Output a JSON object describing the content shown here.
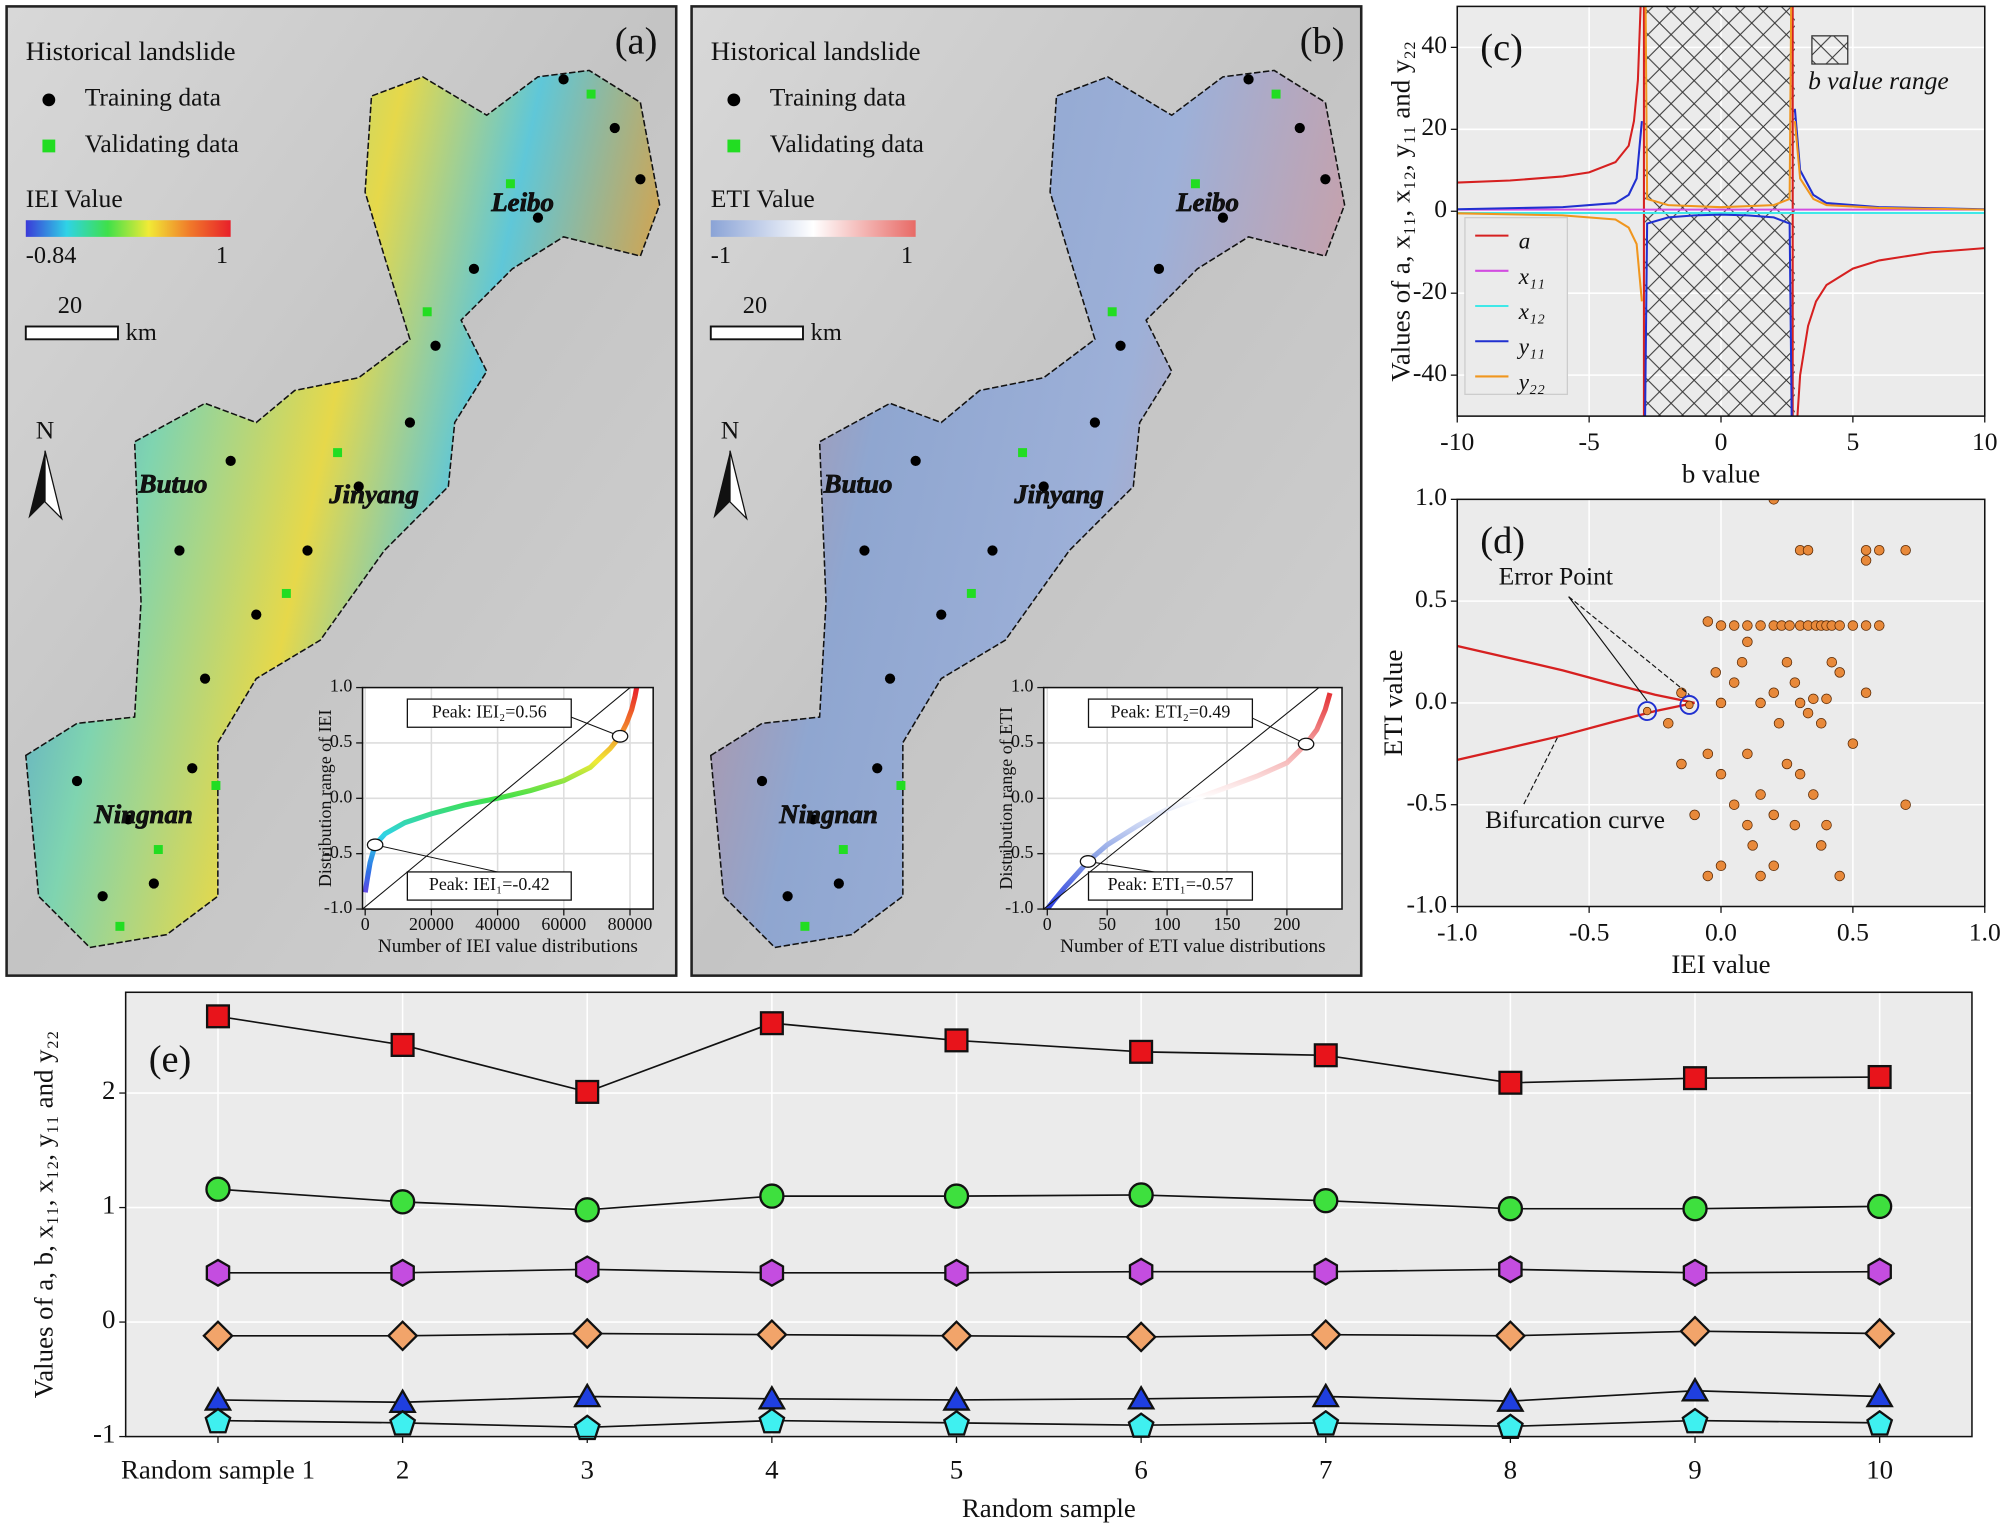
{
  "maps": [
    {
      "label": "(a)",
      "legend_title": "Historical landslide",
      "legend": [
        {
          "name": "Training data",
          "color": "#000000"
        },
        {
          "name": "Validating data",
          "color": "#22dd22"
        }
      ],
      "colorbar": {
        "title": "IEI Value",
        "min": -0.84,
        "max": 1,
        "colors": [
          "#3a3ad8",
          "#2fd3e6",
          "#3fe04a",
          "#f1ea36",
          "#f07a2a",
          "#e8202a"
        ]
      },
      "scale": {
        "length": 20,
        "unit": "km"
      },
      "north": "N",
      "places": [
        "Leibo",
        "Butuo",
        "Jinyang",
        "Ningnan"
      ]
    },
    {
      "label": "(b)",
      "legend_title": "Historical landslide",
      "legend": [
        {
          "name": "Training data",
          "color": "#000000"
        },
        {
          "name": "Validating data",
          "color": "#22dd22"
        }
      ],
      "colorbar": {
        "title": "ETI Value",
        "min": -1,
        "max": 1,
        "colors": [
          "#8aa3d6",
          "#ffffff",
          "#e86a66"
        ]
      },
      "scale": {
        "length": 20,
        "unit": "km"
      },
      "north": "N",
      "places": [
        "Leibo",
        "Butuo",
        "Jinyang",
        "Ningnan"
      ]
    }
  ],
  "chart_data": [
    {
      "type": "line",
      "xlabel": "Number of IEI value distributions",
      "ylabel": "Distribution range of IEI",
      "xlim": [
        -800,
        87000
      ],
      "xticks": [
        0,
        20000,
        40000,
        60000,
        80000
      ],
      "ylim": [
        -1,
        1
      ],
      "yticks": [
        {
          "value": -1,
          "label": "-1.0"
        },
        -0.5,
        {
          "value": 0,
          "label": "0.0"
        },
        0.5,
        {
          "value": 1,
          "label": "1.0"
        }
      ],
      "grid": true,
      "background": "#ffffff",
      "series": [
        {
          "colormap": [
            "#8a2be2",
            "#2f6fe6",
            "#2fd3e6",
            "#3fe04a",
            "#f1ea36",
            "#f07a2a",
            "#e8202a"
          ],
          "x": [
            0,
            500,
            1500,
            3000,
            6000,
            12000,
            20000,
            30000,
            40000,
            50000,
            60000,
            68000,
            74000,
            77000,
            79000,
            80500,
            81500,
            82000
          ],
          "values": [
            -0.85,
            -0.75,
            -0.58,
            -0.42,
            -0.32,
            -0.22,
            -0.14,
            -0.06,
            0.0,
            0.07,
            0.16,
            0.28,
            0.45,
            0.56,
            0.68,
            0.8,
            0.92,
            1.0
          ]
        }
      ],
      "peaks": [
        {
          "label": "Peak: IEI₂=0.56",
          "x": 77000,
          "y": 0.56
        },
        {
          "label": "Peak: IEI₁=-0.42",
          "x": 3000,
          "y": -0.42
        }
      ]
    },
    {
      "type": "line",
      "xlabel": "Number of ETI value distributions",
      "ylabel": "Distribution range of ETI",
      "xlim": [
        -3,
        246
      ],
      "xticks": [
        0,
        50,
        100,
        150,
        200
      ],
      "ylim": [
        -1,
        1
      ],
      "yticks": [
        {
          "value": -1,
          "label": "-1.0"
        },
        -0.5,
        {
          "value": 0,
          "label": "0.0"
        },
        0.5,
        {
          "value": 1,
          "label": "1.0"
        }
      ],
      "grid": true,
      "background": "#ffffff",
      "series": [
        {
          "colormap": [
            "#2a3ee0",
            "#8fa6e6",
            "#ffffff",
            "#f29a9a",
            "#e3262a"
          ],
          "x": [
            0,
            5,
            15,
            25,
            34,
            50,
            75,
            100,
            125,
            150,
            175,
            200,
            216,
            225,
            232,
            236
          ],
          "values": [
            -1.0,
            -0.93,
            -0.8,
            -0.68,
            -0.57,
            -0.42,
            -0.25,
            -0.1,
            0.0,
            0.1,
            0.2,
            0.32,
            0.49,
            0.62,
            0.8,
            0.95
          ]
        }
      ],
      "peaks": [
        {
          "label": "Peak: ETI₂=0.49",
          "x": 216,
          "y": 0.49
        },
        {
          "label": "Peak: ETI₁=-0.57",
          "x": 34,
          "y": -0.57
        }
      ]
    },
    {
      "type": "line",
      "label": "(c)",
      "xlabel": "b value",
      "ylabel": "Values of a, x₁₁, x₁₂, y₁₁ and y₂₂",
      "xlim": [
        -10,
        10
      ],
      "xticks": [
        -10,
        -5,
        0,
        5,
        10
      ],
      "ylim": [
        -50,
        50
      ],
      "yticks": [
        -40,
        -20,
        0,
        20,
        40
      ],
      "grid": true,
      "background": "#ebebeb",
      "shaded_range": {
        "label": "b value range",
        "x": [
          -2.9,
          2.8
        ]
      },
      "series": [
        {
          "name": "a",
          "color": "#d62020",
          "x": [
            -10,
            -8,
            -6,
            -5,
            -4,
            -3.5,
            -3.3,
            -3.15,
            -3.05,
            null,
            -2.92,
            -2.92,
            null,
            2.72,
            2.72,
            null,
            2.9,
            3.0,
            3.3,
            3.6,
            4,
            5,
            6,
            8,
            10
          ],
          "values": [
            7,
            7.5,
            8.5,
            9.5,
            12,
            16,
            22,
            32,
            50,
            null,
            50,
            -50,
            null,
            50,
            -50,
            null,
            -50,
            -40,
            -28,
            -22,
            -18,
            -14,
            -12,
            -10,
            -9
          ]
        },
        {
          "name": "x₁₁",
          "color": "#d24de0",
          "x": [
            -10,
            10
          ],
          "values": [
            0.4,
            0.4
          ]
        },
        {
          "name": "x₁₂",
          "color": "#3fe8e8",
          "x": [
            -10,
            10
          ],
          "values": [
            -0.4,
            -0.4
          ]
        },
        {
          "name": "y₁₁",
          "color": "#2030d0",
          "x": [
            -10,
            -6,
            -4,
            -3.5,
            -3.2,
            -3.0,
            null,
            -2.88,
            -2.8,
            -2,
            -1,
            0,
            1,
            2,
            2.6,
            2.68,
            null,
            2.8,
            3,
            3.5,
            4,
            6,
            10
          ],
          "values": [
            0.5,
            1,
            2,
            4,
            8,
            22,
            null,
            -50,
            -3,
            -1.5,
            -1,
            -0.8,
            -1,
            -1.5,
            -3,
            -50,
            null,
            25,
            10,
            4,
            2,
            1,
            0.5
          ]
        },
        {
          "name": "y₂₂",
          "color": "#f0961e",
          "x": [
            -10,
            -6,
            -4,
            -3.5,
            -3.2,
            -3.0,
            null,
            -2.86,
            -2.8,
            -2,
            0,
            2,
            2.6,
            2.66,
            null,
            2.8,
            3,
            3.5,
            4,
            6,
            10
          ],
          "values": [
            -0.5,
            -1,
            -2,
            -4,
            -8,
            -22,
            null,
            50,
            3,
            1.5,
            1,
            1.5,
            3,
            50,
            null,
            22,
            8,
            3,
            1.5,
            0.8,
            0.4
          ]
        }
      ]
    },
    {
      "type": "scatter",
      "label": "(d)",
      "xlabel": "IEI value",
      "ylabel": "ETI value",
      "xlim": [
        -1,
        1
      ],
      "xticks": [
        {
          "value": -1,
          "label": "-1.0"
        },
        -0.5,
        {
          "value": 0,
          "label": "0.0"
        },
        0.5,
        {
          "value": 1,
          "label": "1.0"
        }
      ],
      "ylim": [
        -1,
        1
      ],
      "yticks": [
        {
          "value": -1,
          "label": "-1.0"
        },
        -0.5,
        {
          "value": 0,
          "label": "0.0"
        },
        0.5,
        {
          "value": 1,
          "label": "1.0"
        }
      ],
      "grid": true,
      "background": "#ebebeb",
      "annotations": [
        "Error Point",
        "Bifurcation curve"
      ],
      "error_points": {
        "x": [
          -0.28,
          -0.12
        ],
        "values": [
          -0.04,
          -0.01
        ]
      },
      "curve": {
        "color": "#d62020",
        "x": [
          -1,
          -0.8,
          -0.6,
          -0.4,
          -0.25,
          -0.1,
          null,
          -1,
          -0.8,
          -0.6,
          -0.4,
          -0.25,
          -0.1
        ],
        "values": [
          0.28,
          0.22,
          0.16,
          0.09,
          0.04,
          0,
          null,
          -0.28,
          -0.22,
          -0.16,
          -0.09,
          -0.04,
          0
        ]
      },
      "series": [
        {
          "color": "#e8893a",
          "x": [
            0.0,
            0.05,
            0.1,
            0.15,
            0.2,
            0.23,
            0.26,
            0.3,
            0.33,
            0.36,
            0.38,
            0.4,
            0.42,
            0.45,
            0.5,
            0.55,
            0.3,
            0.33,
            0.55,
            0.6,
            -0.05,
            -0.02,
            0.0,
            0.05,
            0.1,
            0.1,
            0.15,
            0.2,
            0.22,
            0.25,
            0.28,
            0.3,
            0.33,
            0.35,
            0.38,
            0.4,
            0.42,
            0.45,
            0.0,
            0.05,
            0.1,
            0.15,
            0.2,
            0.25,
            0.28,
            0.3,
            0.35,
            0.4,
            0.45,
            -0.15,
            -0.1,
            -0.05,
            0.0,
            0.15,
            0.2,
            0.55,
            0.7,
            0.7,
            0.5,
            0.55,
            0.6,
            0.2,
            -0.2,
            -0.15,
            -0.05,
            0.12,
            0.38,
            0.08
          ],
          "values": [
            0.38,
            0.38,
            0.38,
            0.38,
            0.38,
            0.38,
            0.38,
            0.38,
            0.38,
            0.38,
            0.38,
            0.38,
            0.38,
            0.38,
            0.38,
            0.38,
            0.75,
            0.75,
            0.75,
            0.75,
            0.4,
            0.15,
            0.0,
            0.1,
            0.3,
            -0.25,
            0.0,
            0.05,
            -0.1,
            0.2,
            0.1,
            0.0,
            -0.05,
            0.02,
            -0.1,
            0.02,
            0.2,
            0.15,
            -0.35,
            -0.5,
            -0.6,
            -0.45,
            -0.55,
            -0.3,
            -0.6,
            -0.35,
            -0.45,
            -0.6,
            -0.85,
            -0.3,
            -0.55,
            -0.85,
            -0.8,
            -0.85,
            -0.8,
            0.7,
            0.75,
            -0.5,
            -0.2,
            0.05,
            0.38,
            1.0,
            -0.1,
            0.05,
            -0.25,
            -0.7,
            -0.7,
            0.2
          ]
        }
      ]
    },
    {
      "type": "line",
      "label": "(e)",
      "xlabel": "Random sample",
      "ylabel": "Values of a, b, x₁₁, x₁₂, y₁₁ and y₂₂",
      "categories": [
        "Random sample 1",
        "2",
        "3",
        "4",
        "5",
        "6",
        "7",
        "8",
        "9",
        "10"
      ],
      "ylim": [
        -1,
        2.88
      ],
      "yticks": [
        -1,
        0,
        1,
        2
      ],
      "grid": true,
      "background": "#ebebeb",
      "series": [
        {
          "marker": "square",
          "color": "#e8141b",
          "values": [
            2.67,
            2.42,
            2.01,
            2.61,
            2.46,
            2.36,
            2.33,
            2.09,
            2.13,
            2.14
          ]
        },
        {
          "marker": "circle",
          "color": "#3ee03e",
          "values": [
            1.16,
            1.05,
            0.98,
            1.1,
            1.1,
            1.11,
            1.06,
            0.99,
            0.99,
            1.01
          ]
        },
        {
          "marker": "hexagon",
          "color": "#c44de0",
          "values": [
            0.43,
            0.43,
            0.46,
            0.43,
            0.43,
            0.44,
            0.44,
            0.46,
            0.43,
            0.44
          ]
        },
        {
          "marker": "diamond",
          "color": "#f2a46a",
          "values": [
            -0.12,
            -0.12,
            -0.1,
            -0.11,
            -0.12,
            -0.13,
            -0.11,
            -0.12,
            -0.08,
            -0.1
          ]
        },
        {
          "marker": "triangle",
          "color": "#1f3fe0",
          "values": [
            -0.68,
            -0.7,
            -0.65,
            -0.67,
            -0.68,
            -0.67,
            -0.65,
            -0.69,
            -0.6,
            -0.65
          ]
        },
        {
          "marker": "pentagon",
          "color": "#3ff0f0",
          "values": [
            -0.86,
            -0.88,
            -0.92,
            -0.86,
            -0.88,
            -0.9,
            -0.88,
            -0.91,
            -0.86,
            -0.88
          ]
        }
      ]
    }
  ]
}
